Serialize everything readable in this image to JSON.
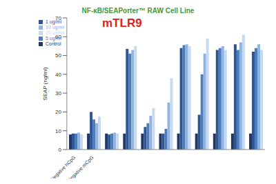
{
  "chart_data": {
    "type": "bar",
    "title": "NF-κB/SEAPorter™ RAW Cell Line",
    "annotation": "mTLR9",
    "y_label": "SEAP (ng/ml)",
    "categories": [
      "Negative hCpG",
      "Negative mCpG",
      null,
      null,
      null,
      null,
      null,
      null,
      null,
      null,
      null
    ],
    "series": [
      {
        "name": "Control",
        "color": "#1f3864",
        "values": [
          8,
          8.5,
          8.5,
          8.5,
          8.5,
          8.5,
          8.5,
          8.5,
          8.5,
          8.5,
          8.5
        ]
      },
      {
        "name": "1 ug/ml",
        "color": "#2f5597",
        "values": [
          8.5,
          20,
          8,
          53.5,
          12,
          8.5,
          54,
          18.5,
          53,
          56,
          52
        ]
      },
      {
        "name": "5 ug/ml",
        "color": "#4a7ebb",
        "values": [
          8.5,
          16,
          8.5,
          51,
          14,
          11,
          55.5,
          40,
          54,
          53,
          54
        ]
      },
      {
        "name": "10 ug/ml",
        "color": "#8eb4e3",
        "values": [
          9,
          14,
          9,
          53,
          18,
          25,
          56,
          51,
          55,
          57,
          56
        ]
      },
      {
        "name": "20 ug/ml",
        "color": "#c6d9f1",
        "values": [
          8,
          17.5,
          8.5,
          55,
          22,
          38,
          55,
          59,
          53,
          61,
          53
        ]
      }
    ],
    "ylim": [
      0,
      70
    ],
    "yticks": [
      0,
      10,
      20,
      30,
      40,
      50,
      60,
      70
    ],
    "grid": false,
    "legend": "upper left"
  }
}
